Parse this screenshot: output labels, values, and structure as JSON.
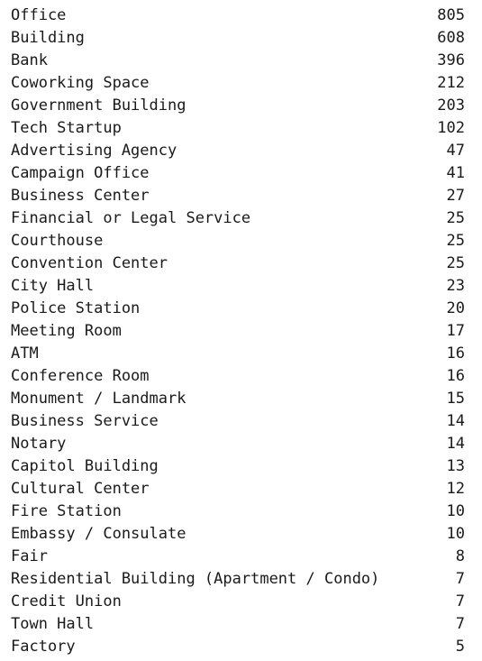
{
  "venue_counts": [
    {
      "name": "Office",
      "count": "805"
    },
    {
      "name": "Building",
      "count": "608"
    },
    {
      "name": "Bank",
      "count": "396"
    },
    {
      "name": "Coworking Space",
      "count": "212"
    },
    {
      "name": "Government Building",
      "count": "203"
    },
    {
      "name": "Tech Startup",
      "count": "102"
    },
    {
      "name": "Advertising Agency",
      "count": "47"
    },
    {
      "name": "Campaign Office",
      "count": "41"
    },
    {
      "name": "Business Center",
      "count": "27"
    },
    {
      "name": "Financial or Legal Service",
      "count": "25"
    },
    {
      "name": "Courthouse",
      "count": "25"
    },
    {
      "name": "Convention Center",
      "count": "25"
    },
    {
      "name": "City Hall",
      "count": "23"
    },
    {
      "name": "Police Station",
      "count": "20"
    },
    {
      "name": "Meeting Room",
      "count": "17"
    },
    {
      "name": "ATM",
      "count": "16"
    },
    {
      "name": "Conference Room",
      "count": "16"
    },
    {
      "name": "Monument / Landmark",
      "count": "15"
    },
    {
      "name": "Business Service",
      "count": "14"
    },
    {
      "name": "Notary",
      "count": "14"
    },
    {
      "name": "Capitol Building",
      "count": "13"
    },
    {
      "name": "Cultural Center",
      "count": "12"
    },
    {
      "name": "Fire Station",
      "count": "10"
    },
    {
      "name": "Embassy / Consulate",
      "count": "10"
    },
    {
      "name": "Fair",
      "count": "8"
    },
    {
      "name": "Residential Building (Apartment / Condo)",
      "count": "7"
    },
    {
      "name": "Credit Union",
      "count": "7"
    },
    {
      "name": "Town Hall",
      "count": "7"
    },
    {
      "name": "Factory",
      "count": "5"
    }
  ]
}
